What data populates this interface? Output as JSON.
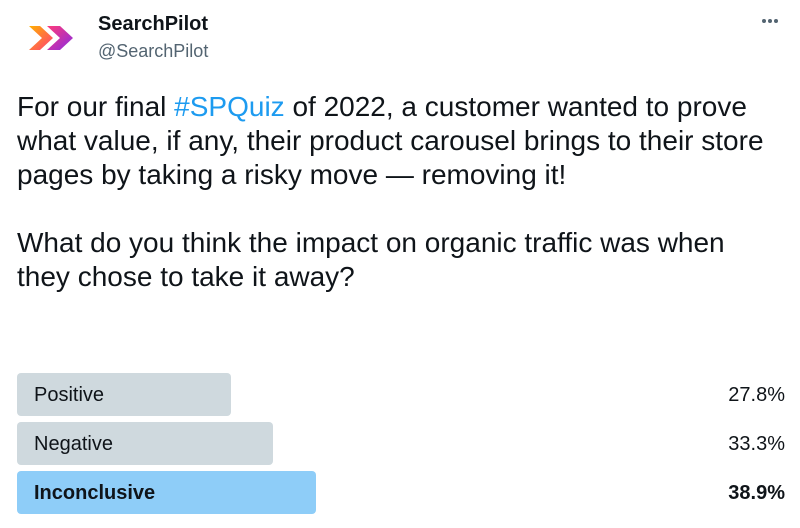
{
  "author": {
    "display_name": "SearchPilot",
    "handle": "@SearchPilot",
    "avatar_icon": "searchpilot-chevrons-logo",
    "brand_colors": [
      "#ffb000",
      "#ff3b7a",
      "#8a2be2"
    ]
  },
  "actions": {
    "more_icon": "more-horizontal-icon"
  },
  "tweet": {
    "before_hashtag": "For our final ",
    "hashtag": "#SPQuiz",
    "after_hashtag": " of 2022, a customer wanted to prove what value, if any, their product carousel brings to their store pages by taking a risky move — removing it!",
    "question": "What do you think the impact on organic traffic was when they chose to take it away?",
    "hashtag_color": "#1d9bf0"
  },
  "poll": {
    "options": [
      {
        "label": "Positive",
        "percent_text": "27.8%",
        "percent": 27.8,
        "winner": false
      },
      {
        "label": "Negative",
        "percent_text": "33.3%",
        "percent": 33.3,
        "winner": false
      },
      {
        "label": "Inconclusive",
        "percent_text": "38.9%",
        "percent": 38.9,
        "winner": true
      }
    ],
    "default_fill_color": "#cfd9de",
    "winner_fill_color": "#8ecdf8"
  }
}
